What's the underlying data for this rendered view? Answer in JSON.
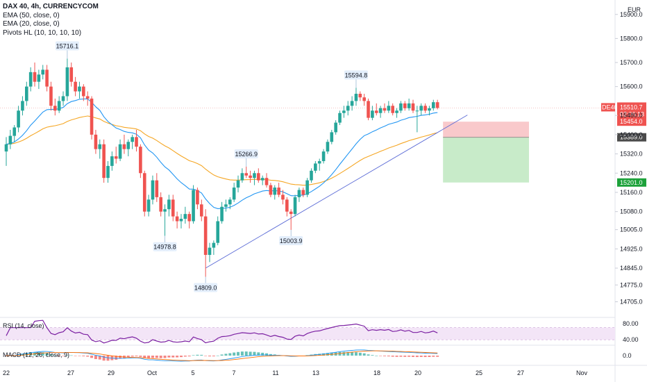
{
  "header": {
    "symbol_line": "DAX 40, 4h, CURRENCYCOM",
    "indicator_ema50": "EMA (50, close, 0)",
    "indicator_ema20": "EMA (20, close, 0)",
    "indicator_pivots": "Pivots HL (10, 10, 10, 10)",
    "currency": "EUR"
  },
  "price_tags": {
    "symbol": "DE40",
    "last": "15510.7",
    "countdown": "02:06:13",
    "stop": "15454.0",
    "entry": "15389.0",
    "target": "15201.0"
  },
  "colors": {
    "up": "#26a69a",
    "down": "#ef5350",
    "ema20": "#2196f3",
    "ema50": "#f5a623",
    "trendline": "#5b6bd6",
    "rsi": "#7b1fa2",
    "stop_zone": "#f9c9cb",
    "target_zone": "#c8ebc9"
  },
  "chart_data": [
    {
      "type": "candlestick",
      "title": "DAX 40, 4h, CURRENCYCOM",
      "ylim": [
        14640,
        15960
      ],
      "y_ticks": [
        "15900.0",
        "15800.0",
        "15700.0",
        "15600.0",
        "15480.0",
        "15400.0",
        "15320.0",
        "15240.0",
        "15160.0",
        "15080.0",
        "15005.0",
        "14925.0",
        "14845.0",
        "14775.0",
        "14705.0"
      ],
      "x_ticks": [
        "22",
        "27",
        "29",
        "Oct",
        "5",
        "7",
        "11",
        "13",
        "18",
        "20",
        "25",
        "27",
        "Nov"
      ],
      "candles": [
        {
          "o": 15330,
          "h": 15390,
          "l": 15270,
          "c": 15360
        },
        {
          "o": 15360,
          "h": 15420,
          "l": 15340,
          "c": 15395
        },
        {
          "o": 15395,
          "h": 15440,
          "l": 15370,
          "c": 15430
        },
        {
          "o": 15430,
          "h": 15520,
          "l": 15410,
          "c": 15500
        },
        {
          "o": 15500,
          "h": 15560,
          "l": 15480,
          "c": 15540
        },
        {
          "o": 15540,
          "h": 15620,
          "l": 15520,
          "c": 15600
        },
        {
          "o": 15600,
          "h": 15680,
          "l": 15580,
          "c": 15660
        },
        {
          "o": 15660,
          "h": 15700,
          "l": 15600,
          "c": 15620
        },
        {
          "o": 15620,
          "h": 15670,
          "l": 15590,
          "c": 15650
        },
        {
          "o": 15650,
          "h": 15690,
          "l": 15630,
          "c": 15670
        },
        {
          "o": 15670,
          "h": 15690,
          "l": 15580,
          "c": 15600
        },
        {
          "o": 15600,
          "h": 15620,
          "l": 15500,
          "c": 15520
        },
        {
          "o": 15520,
          "h": 15550,
          "l": 15480,
          "c": 15500
        },
        {
          "o": 15500,
          "h": 15560,
          "l": 15490,
          "c": 15540
        },
        {
          "o": 15540,
          "h": 15580,
          "l": 15520,
          "c": 15560
        },
        {
          "o": 15560,
          "h": 15716,
          "l": 15540,
          "c": 15680
        },
        {
          "o": 15680,
          "h": 15700,
          "l": 15600,
          "c": 15620
        },
        {
          "o": 15620,
          "h": 15640,
          "l": 15560,
          "c": 15580
        },
        {
          "o": 15580,
          "h": 15620,
          "l": 15550,
          "c": 15600
        },
        {
          "o": 15600,
          "h": 15610,
          "l": 15540,
          "c": 15560
        },
        {
          "o": 15560,
          "h": 15580,
          "l": 15520,
          "c": 15550
        },
        {
          "o": 15550,
          "h": 15560,
          "l": 15380,
          "c": 15400
        },
        {
          "o": 15400,
          "h": 15420,
          "l": 15320,
          "c": 15340
        },
        {
          "o": 15340,
          "h": 15380,
          "l": 15300,
          "c": 15360
        },
        {
          "o": 15360,
          "h": 15380,
          "l": 15200,
          "c": 15220
        },
        {
          "o": 15220,
          "h": 15290,
          "l": 15200,
          "c": 15270
        },
        {
          "o": 15270,
          "h": 15330,
          "l": 15250,
          "c": 15310
        },
        {
          "o": 15310,
          "h": 15350,
          "l": 15280,
          "c": 15300
        },
        {
          "o": 15300,
          "h": 15380,
          "l": 15290,
          "c": 15360
        },
        {
          "o": 15360,
          "h": 15400,
          "l": 15320,
          "c": 15340
        },
        {
          "o": 15340,
          "h": 15380,
          "l": 15310,
          "c": 15370
        },
        {
          "o": 15370,
          "h": 15400,
          "l": 15340,
          "c": 15390
        },
        {
          "o": 15390,
          "h": 15420,
          "l": 15330,
          "c": 15350
        },
        {
          "o": 15350,
          "h": 15360,
          "l": 15220,
          "c": 15240
        },
        {
          "o": 15240,
          "h": 15250,
          "l": 15060,
          "c": 15080
        },
        {
          "o": 15080,
          "h": 15150,
          "l": 15060,
          "c": 15130
        },
        {
          "o": 15130,
          "h": 15230,
          "l": 15110,
          "c": 15210
        },
        {
          "o": 15210,
          "h": 15240,
          "l": 15120,
          "c": 15140
        },
        {
          "o": 15140,
          "h": 15160,
          "l": 15060,
          "c": 15080
        },
        {
          "o": 15080,
          "h": 15110,
          "l": 14979,
          "c": 15090
        },
        {
          "o": 15090,
          "h": 15150,
          "l": 15060,
          "c": 15130
        },
        {
          "o": 15130,
          "h": 15150,
          "l": 15040,
          "c": 15060
        },
        {
          "o": 15060,
          "h": 15080,
          "l": 15010,
          "c": 15040
        },
        {
          "o": 15040,
          "h": 15070,
          "l": 15010,
          "c": 15050
        },
        {
          "o": 15050,
          "h": 15100,
          "l": 15030,
          "c": 15070
        },
        {
          "o": 15070,
          "h": 15080,
          "l": 15010,
          "c": 15040
        },
        {
          "o": 15040,
          "h": 15190,
          "l": 15030,
          "c": 15170
        },
        {
          "o": 15170,
          "h": 15180,
          "l": 15090,
          "c": 15110
        },
        {
          "o": 15110,
          "h": 15130,
          "l": 15040,
          "c": 15060
        },
        {
          "o": 15060,
          "h": 15090,
          "l": 14809,
          "c": 14900
        },
        {
          "o": 14900,
          "h": 14950,
          "l": 14870,
          "c": 14930
        },
        {
          "o": 14930,
          "h": 14960,
          "l": 14900,
          "c": 14950
        },
        {
          "o": 14950,
          "h": 15060,
          "l": 14940,
          "c": 15040
        },
        {
          "o": 15040,
          "h": 15120,
          "l": 15030,
          "c": 15100
        },
        {
          "o": 15100,
          "h": 15130,
          "l": 15080,
          "c": 15110
        },
        {
          "o": 15110,
          "h": 15140,
          "l": 15090,
          "c": 15130
        },
        {
          "o": 15130,
          "h": 15200,
          "l": 15120,
          "c": 15180
        },
        {
          "o": 15180,
          "h": 15230,
          "l": 15160,
          "c": 15210
        },
        {
          "o": 15210,
          "h": 15260,
          "l": 15200,
          "c": 15240
        },
        {
          "o": 15240,
          "h": 15267,
          "l": 15220,
          "c": 15230
        },
        {
          "o": 15230,
          "h": 15250,
          "l": 15200,
          "c": 15220
        },
        {
          "o": 15220,
          "h": 15250,
          "l": 15190,
          "c": 15240
        },
        {
          "o": 15240,
          "h": 15260,
          "l": 15200,
          "c": 15210
        },
        {
          "o": 15210,
          "h": 15230,
          "l": 15190,
          "c": 15220
        },
        {
          "o": 15220,
          "h": 15240,
          "l": 15180,
          "c": 15190
        },
        {
          "o": 15190,
          "h": 15200,
          "l": 15140,
          "c": 15150
        },
        {
          "o": 15150,
          "h": 15190,
          "l": 15130,
          "c": 15180
        },
        {
          "o": 15180,
          "h": 15200,
          "l": 15140,
          "c": 15150
        },
        {
          "o": 15150,
          "h": 15170,
          "l": 15110,
          "c": 15130
        },
        {
          "o": 15130,
          "h": 15140,
          "l": 15060,
          "c": 15080
        },
        {
          "o": 15080,
          "h": 15090,
          "l": 15004,
          "c": 15070
        },
        {
          "o": 15070,
          "h": 15150,
          "l": 15060,
          "c": 15140
        },
        {
          "o": 15140,
          "h": 15180,
          "l": 15120,
          "c": 15170
        },
        {
          "o": 15170,
          "h": 15180,
          "l": 15140,
          "c": 15150
        },
        {
          "o": 15150,
          "h": 15220,
          "l": 15140,
          "c": 15210
        },
        {
          "o": 15210,
          "h": 15260,
          "l": 15200,
          "c": 15250
        },
        {
          "o": 15250,
          "h": 15290,
          "l": 15240,
          "c": 15280
        },
        {
          "o": 15280,
          "h": 15300,
          "l": 15250,
          "c": 15290
        },
        {
          "o": 15290,
          "h": 15340,
          "l": 15280,
          "c": 15330
        },
        {
          "o": 15330,
          "h": 15380,
          "l": 15320,
          "c": 15370
        },
        {
          "o": 15370,
          "h": 15420,
          "l": 15360,
          "c": 15410
        },
        {
          "o": 15410,
          "h": 15460,
          "l": 15400,
          "c": 15450
        },
        {
          "o": 15450,
          "h": 15500,
          "l": 15440,
          "c": 15490
        },
        {
          "o": 15490,
          "h": 15520,
          "l": 15470,
          "c": 15500
        },
        {
          "o": 15500,
          "h": 15540,
          "l": 15480,
          "c": 15520
        },
        {
          "o": 15520,
          "h": 15560,
          "l": 15500,
          "c": 15540
        },
        {
          "o": 15540,
          "h": 15595,
          "l": 15520,
          "c": 15570
        },
        {
          "o": 15570,
          "h": 15580,
          "l": 15540,
          "c": 15555
        },
        {
          "o": 15555,
          "h": 15570,
          "l": 15520,
          "c": 15540
        },
        {
          "o": 15540,
          "h": 15550,
          "l": 15460,
          "c": 15470
        },
        {
          "o": 15470,
          "h": 15520,
          "l": 15460,
          "c": 15500
        },
        {
          "o": 15500,
          "h": 15530,
          "l": 15480,
          "c": 15490
        },
        {
          "o": 15490,
          "h": 15520,
          "l": 15470,
          "c": 15510
        },
        {
          "o": 15510,
          "h": 15530,
          "l": 15490,
          "c": 15500
        },
        {
          "o": 15500,
          "h": 15540,
          "l": 15490,
          "c": 15520
        },
        {
          "o": 15520,
          "h": 15530,
          "l": 15480,
          "c": 15490
        },
        {
          "o": 15490,
          "h": 15510,
          "l": 15470,
          "c": 15500
        },
        {
          "o": 15500,
          "h": 15540,
          "l": 15490,
          "c": 15530
        },
        {
          "o": 15530,
          "h": 15540,
          "l": 15500,
          "c": 15510
        },
        {
          "o": 15510,
          "h": 15550,
          "l": 15500,
          "c": 15530
        },
        {
          "o": 15530,
          "h": 15545,
          "l": 15490,
          "c": 15500
        },
        {
          "o": 15500,
          "h": 15520,
          "l": 15410,
          "c": 15500
        },
        {
          "o": 15500,
          "h": 15530,
          "l": 15480,
          "c": 15520
        },
        {
          "o": 15520,
          "h": 15530,
          "l": 15490,
          "c": 15500
        },
        {
          "o": 15500,
          "h": 15520,
          "l": 15480,
          "c": 15510
        },
        {
          "o": 15510,
          "h": 15545,
          "l": 15500,
          "c": 15535
        },
        {
          "o": 15535,
          "h": 15545,
          "l": 15505,
          "c": 15511
        }
      ],
      "pivots": [
        {
          "label": "15716.1",
          "index": 15,
          "value": 15716.1,
          "kind": "high"
        },
        {
          "label": "14978.8",
          "index": 39,
          "value": 14978.8,
          "kind": "low"
        },
        {
          "label": "14809.0",
          "index": 49,
          "value": 14809.0,
          "kind": "low"
        },
        {
          "label": "15266.9",
          "index": 59,
          "value": 15266.9,
          "kind": "high"
        },
        {
          "label": "15003.9",
          "index": 70,
          "value": 15003.9,
          "kind": "low"
        },
        {
          "label": "15594.8",
          "index": 86,
          "value": 15594.8,
          "kind": "high"
        }
      ],
      "trendline": {
        "from": {
          "index": 49,
          "value": 14845
        },
        "to": {
          "index": 112,
          "value": 15470
        }
      },
      "position": {
        "stop": 15454.0,
        "entry": 15389.0,
        "target": 15201.0
      }
    },
    {
      "type": "line",
      "title": "RSI (14, close)",
      "levels": [
        "80.00",
        "40.00"
      ],
      "ylim": [
        30,
        90
      ],
      "band": [
        40,
        70
      ]
    },
    {
      "type": "bar",
      "title": "MACD (12, 26, close, 9)",
      "levels": [
        "0.0"
      ]
    }
  ]
}
